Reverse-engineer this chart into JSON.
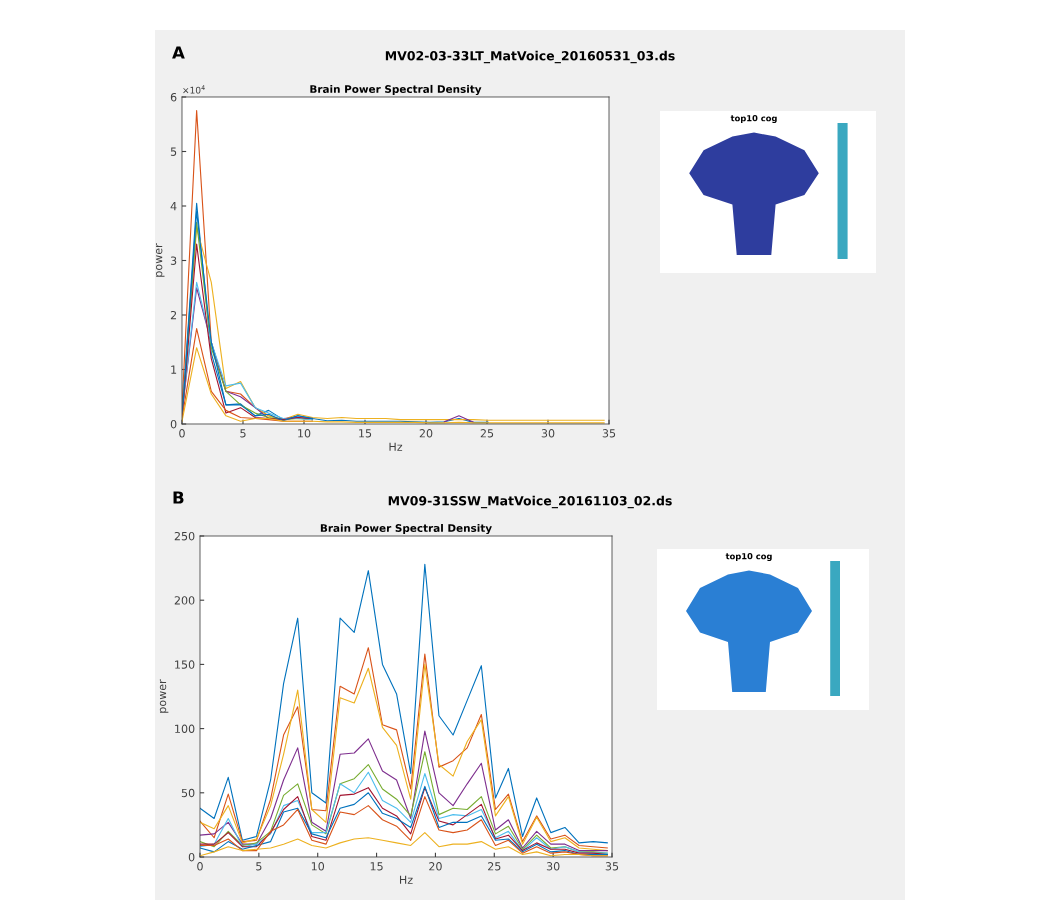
{
  "chart_data": [
    {
      "type": "line",
      "title": "Brain Power Spectral Density",
      "xlabel": "Hz",
      "ylabel": "power",
      "annotations": [
        "A",
        "MV02-03-33LT_MatVoice_20160531_03.ds",
        "×10$^{4}$"
      ],
      "x": [
        0,
        1.2,
        2.4,
        3.6,
        4.8,
        6.0,
        7.1,
        8.3,
        9.5,
        10.7,
        11.9,
        13.1,
        14.3,
        15.5,
        16.7,
        17.9,
        19.1,
        20.3,
        21.5,
        22.7,
        23.9,
        25.1,
        26.2,
        27.4,
        28.6,
        29.8,
        31.0,
        32.2,
        33.4,
        34.6
      ],
      "xlim": [
        0,
        35
      ],
      "xticks": [
        0,
        5,
        10,
        15,
        20,
        25,
        30,
        35
      ],
      "ylim": [
        0,
        6
      ],
      "yticks": [
        0,
        1,
        2,
        3,
        4,
        5,
        6
      ],
      "series": [
        {
          "color": "#d95319",
          "values": [
            0.3,
            5.75,
            1.5,
            0.6,
            0.55,
            0.3,
            0.15,
            0.08,
            null,
            null,
            null,
            null,
            null,
            null,
            null,
            null,
            null,
            null,
            null,
            null,
            null,
            null,
            null,
            null,
            null,
            null,
            null,
            null,
            null,
            null
          ]
        },
        {
          "color": "#0072bd",
          "values": [
            0.15,
            4.05,
            1.3,
            0.35,
            0.37,
            0.15,
            0.25,
            0.08,
            0.15,
            0.1,
            0.06,
            0.07,
            0.05,
            0.05,
            0.05,
            0.05,
            0.04,
            0.03,
            0.04,
            0.1,
            0.03,
            0.03,
            null,
            null,
            null,
            null,
            null,
            null,
            null,
            null
          ]
        },
        {
          "color": "#edb120",
          "values": [
            0.1,
            3.6,
            2.6,
            0.65,
            0.78,
            0.3,
            0.15,
            0.08,
            0.18,
            0.12,
            0.1,
            0.12,
            0.1,
            0.1,
            0.1,
            0.08,
            0.08,
            0.08,
            0.08,
            0.08,
            0.08,
            0.07,
            0.07,
            0.07,
            0.07,
            0.07,
            0.07,
            0.07,
            0.07,
            0.07
          ]
        },
        {
          "color": "#7e2f8e",
          "values": [
            0.2,
            2.5,
            1.5,
            0.6,
            0.5,
            0.3,
            0.1,
            0.1,
            0.12,
            0.08,
            null,
            null,
            null,
            null,
            null,
            null,
            null,
            null,
            0.04,
            0.15,
            0.03,
            null,
            null,
            null,
            null,
            null,
            null,
            null,
            null,
            null
          ]
        },
        {
          "color": "#77ac30",
          "values": [
            0.1,
            3.7,
            1.4,
            0.6,
            0.35,
            0.2,
            0.12,
            0.08,
            0.1,
            0.08,
            null,
            null,
            null,
            null,
            null,
            null,
            null,
            null,
            null,
            null,
            null,
            null,
            null,
            null,
            null,
            null,
            null,
            null,
            null,
            null
          ]
        },
        {
          "color": "#4dbeee",
          "values": [
            0.2,
            2.6,
            1.5,
            0.7,
            0.75,
            0.3,
            0.2,
            0.1,
            0.1,
            0.08,
            null,
            null,
            null,
            null,
            null,
            null,
            null,
            null,
            null,
            null,
            null,
            null,
            null,
            null,
            null,
            null,
            null,
            null,
            null,
            null
          ]
        },
        {
          "color": "#a2142f",
          "values": [
            0.1,
            3.3,
            1.2,
            0.2,
            0.3,
            0.12,
            0.1,
            0.08,
            0.12,
            0.1,
            null,
            null,
            null,
            null,
            null,
            null,
            null,
            null,
            null,
            null,
            null,
            null,
            null,
            null,
            null,
            null,
            null,
            null,
            null,
            null
          ]
        },
        {
          "color": "#0072bd",
          "values": [
            0.1,
            3.9,
            1.5,
            0.35,
            0.35,
            0.15,
            0.18,
            0.06,
            0.15,
            0.1,
            null,
            null,
            null,
            null,
            null,
            null,
            null,
            null,
            null,
            null,
            null,
            null,
            null,
            null,
            null,
            null,
            null,
            null,
            null,
            null
          ]
        },
        {
          "color": "#d95319",
          "values": [
            0.1,
            1.75,
            0.6,
            0.25,
            0.12,
            0.1,
            0.08,
            0.05,
            0.05,
            0.05,
            null,
            null,
            null,
            null,
            null,
            null,
            null,
            null,
            null,
            null,
            null,
            null,
            null,
            null,
            null,
            null,
            null,
            null,
            null,
            null
          ]
        },
        {
          "color": "#edb120",
          "values": [
            0.05,
            1.4,
            0.55,
            0.15,
            0.05,
            0.1,
            0.1,
            0.05,
            0.05,
            0.05,
            0.04,
            0.04,
            0.03,
            0.03,
            0.03,
            0.03,
            0.03,
            0.02,
            0.02,
            0.03,
            0.02,
            0.02,
            0.02,
            0.02,
            0.02,
            0.02,
            0.02,
            0.02,
            0.02,
            0.02
          ]
        }
      ]
    },
    {
      "type": "other",
      "title": "top10 cog"
    },
    {
      "type": "line",
      "title": "Brain Power Spectral Density",
      "xlabel": "Hz",
      "ylabel": "power",
      "annotations": [
        "B",
        "MV09-31SSW_MatVoice_20161103_02.ds"
      ],
      "x": [
        0,
        1.2,
        2.4,
        3.6,
        4.8,
        6.0,
        7.1,
        8.3,
        9.5,
        10.7,
        11.9,
        13.1,
        14.3,
        15.5,
        16.7,
        17.9,
        19.1,
        20.3,
        21.5,
        22.7,
        23.9,
        25.1,
        26.2,
        27.4,
        28.6,
        29.8,
        31.0,
        32.2,
        33.4,
        34.6
      ],
      "xlim": [
        0,
        35
      ],
      "xticks": [
        0,
        5,
        10,
        15,
        20,
        25,
        30,
        35
      ],
      "ylim": [
        0,
        250
      ],
      "yticks": [
        0,
        50,
        100,
        150,
        200,
        250
      ],
      "series": [
        {
          "color": "#0072bd",
          "values": [
            38,
            30,
            62,
            13,
            16,
            60,
            135,
            186,
            50,
            42,
            186,
            175,
            223,
            150,
            127,
            65,
            228,
            110,
            95,
            122,
            149,
            46,
            69,
            16,
            46,
            19,
            23,
            11,
            12,
            11
          ]
        },
        {
          "color": "#d95319",
          "values": [
            28,
            15,
            49,
            12,
            13,
            45,
            95,
            117,
            37,
            36,
            133,
            127,
            163,
            103,
            99,
            53,
            158,
            70,
            75,
            85,
            111,
            37,
            49,
            12,
            32,
            14,
            17,
            9,
            8,
            7
          ]
        },
        {
          "color": "#edb120",
          "values": [
            27,
            22,
            40,
            11,
            14,
            40,
            80,
            130,
            37,
            27,
            124,
            120,
            147,
            101,
            87,
            45,
            150,
            72,
            63,
            90,
            107,
            32,
            47,
            10,
            31,
            12,
            15,
            7,
            6,
            5
          ]
        },
        {
          "color": "#7e2f8e",
          "values": [
            17,
            18,
            27,
            10,
            10,
            30,
            60,
            85,
            27,
            20,
            80,
            81,
            92,
            67,
            60,
            30,
            98,
            50,
            40,
            57,
            73,
            21,
            29,
            7,
            20,
            10,
            10,
            5,
            5,
            5
          ]
        },
        {
          "color": "#77ac30",
          "values": [
            12,
            8,
            20,
            9,
            11,
            20,
            48,
            57,
            25,
            18,
            57,
            61,
            72,
            53,
            45,
            32,
            82,
            33,
            38,
            37,
            47,
            18,
            24,
            6,
            17,
            7,
            8,
            4,
            4,
            3
          ]
        },
        {
          "color": "#4dbeee",
          "values": [
            8,
            10,
            30,
            8,
            10,
            18,
            40,
            44,
            19,
            19,
            57,
            50,
            66,
            44,
            38,
            27,
            65,
            30,
            33,
            32,
            37,
            15,
            20,
            5,
            15,
            6,
            8,
            4,
            3,
            3
          ]
        },
        {
          "color": "#a2142f",
          "values": [
            10,
            10,
            19,
            8,
            8,
            19,
            37,
            47,
            16,
            13,
            48,
            49,
            54,
            38,
            32,
            18,
            54,
            28,
            25,
            33,
            41,
            14,
            17,
            5,
            11,
            6,
            6,
            3,
            3,
            2
          ]
        },
        {
          "color": "#0072bd",
          "values": [
            7,
            4,
            12,
            6,
            9,
            12,
            35,
            38,
            18,
            15,
            38,
            41,
            50,
            34,
            30,
            23,
            55,
            23,
            27,
            27,
            32,
            13,
            14,
            4,
            10,
            4,
            5,
            2,
            2,
            2
          ]
        },
        {
          "color": "#d95319",
          "values": [
            9,
            9,
            14,
            5,
            5,
            20,
            25,
            37,
            13,
            10,
            35,
            33,
            40,
            29,
            24,
            13,
            47,
            21,
            19,
            21,
            29,
            9,
            13,
            3,
            8,
            3,
            4,
            2,
            1,
            1
          ]
        },
        {
          "color": "#edb120",
          "values": [
            1,
            4,
            8,
            5,
            6,
            7,
            10,
            14,
            9,
            7,
            11,
            14,
            15,
            13,
            11,
            9,
            19,
            8,
            10,
            10,
            12,
            6,
            8,
            2,
            4,
            1,
            2,
            2,
            1,
            1
          ]
        }
      ]
    },
    {
      "type": "other",
      "title": "top10 cog"
    }
  ]
}
